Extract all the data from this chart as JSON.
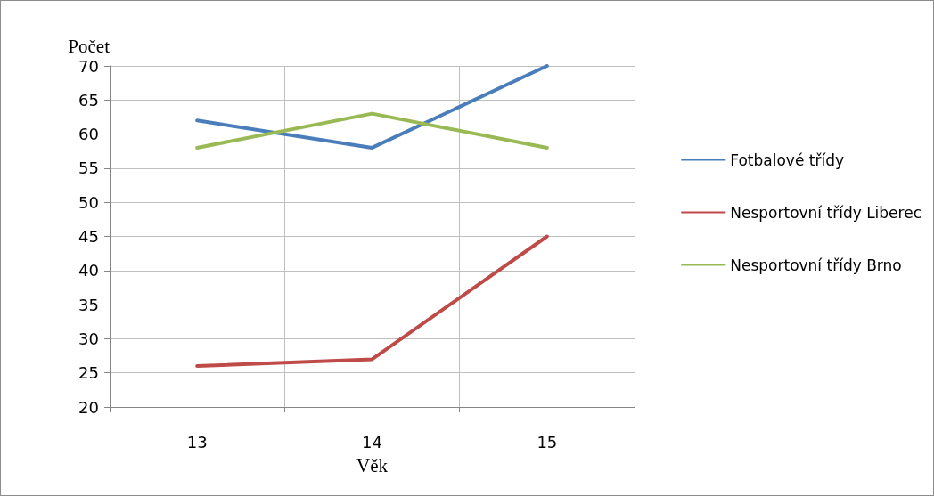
{
  "chart_data": {
    "type": "line",
    "xlabel": "Věk",
    "ylabel": "Počet",
    "categories": [
      "13",
      "14",
      "15"
    ],
    "series": [
      {
        "name": "Fotbalové třídy",
        "color": "#4a7ebb",
        "values": [
          62,
          58,
          70
        ]
      },
      {
        "name": "Nesportovní třídy Liberec",
        "color": "#be4b48",
        "values": [
          26,
          27,
          45
        ]
      },
      {
        "name": "Nesportovní třídy Brno",
        "color": "#98b954",
        "values": [
          58,
          63,
          58
        ]
      }
    ],
    "ylim": [
      20,
      70
    ],
    "yticks": [
      20,
      25,
      30,
      35,
      40,
      45,
      50,
      55,
      60,
      65,
      70
    ],
    "grid": true,
    "legend": "right",
    "marker": "none",
    "line_style": "solid"
  }
}
